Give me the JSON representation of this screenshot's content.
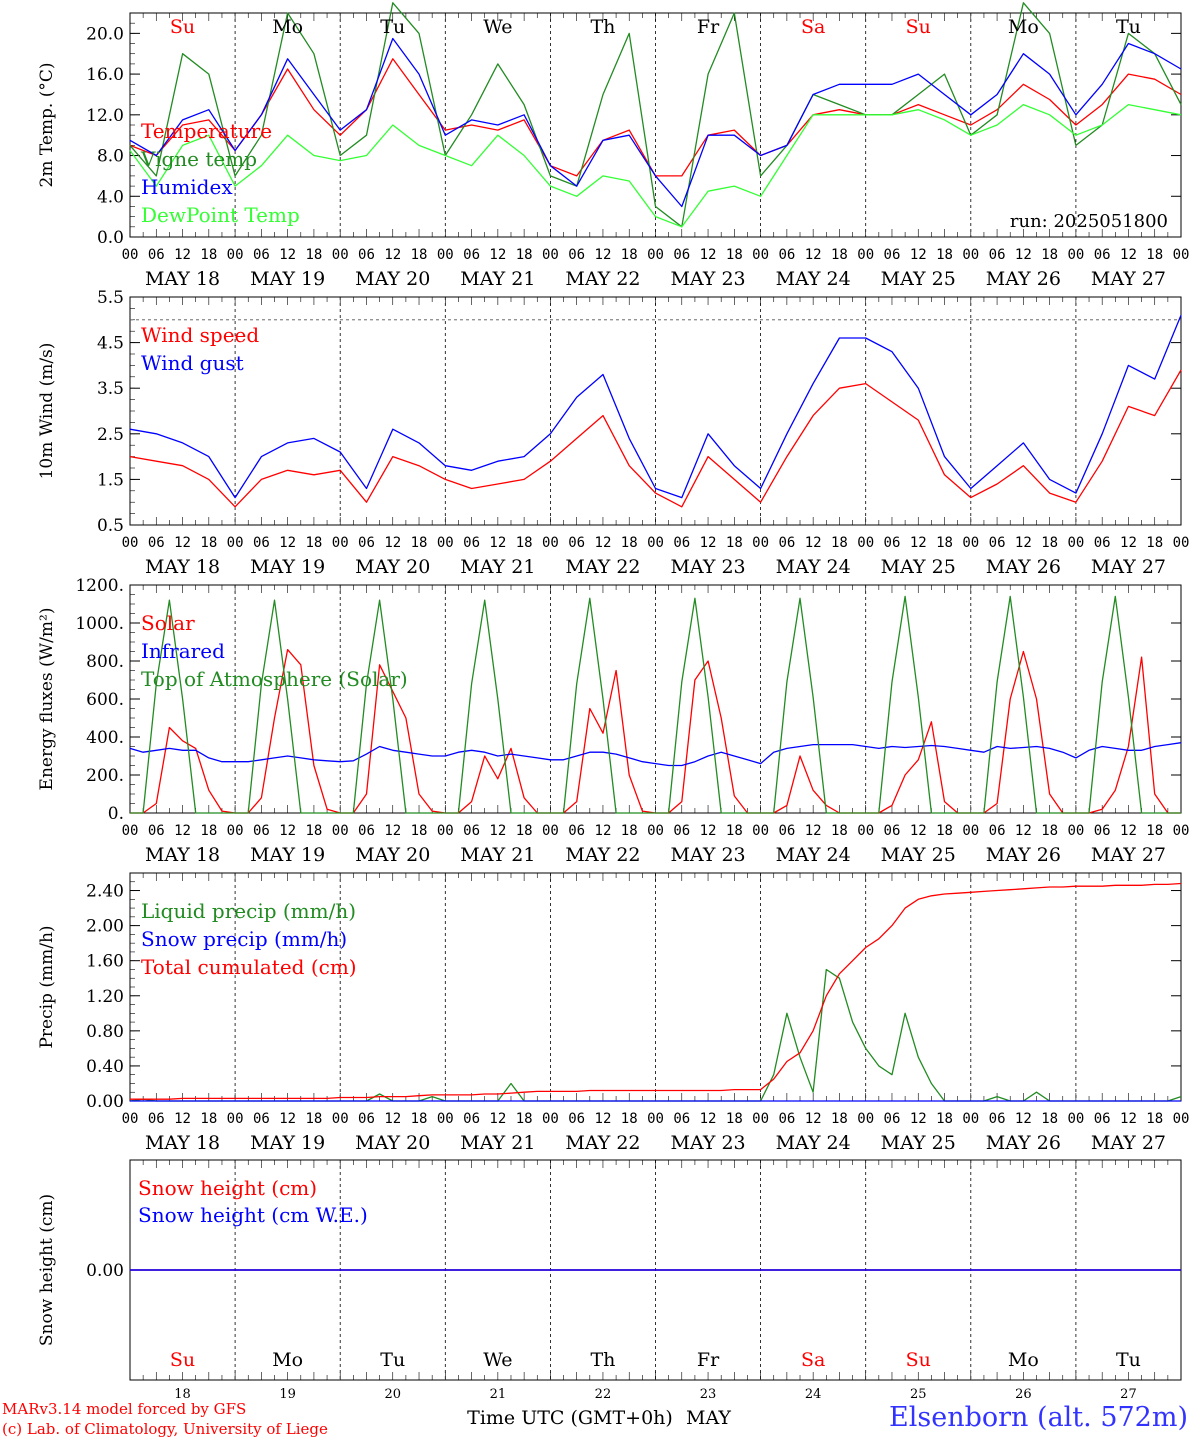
{
  "station_label": "Elsenborn (alt. 572m)",
  "run_label": "run: 2025051800",
  "credits": [
    "MARv3.14 model forced by GFS",
    "(c) Lab. of Climatology, University of Liege"
  ],
  "xaxis": {
    "hour_labels": [
      "00",
      "06",
      "12",
      "18"
    ],
    "date_labels": [
      "MAY 18",
      "MAY 19",
      "MAY 20",
      "MAY 21",
      "MAY 22",
      "MAY 23",
      "MAY 24",
      "MAY 25",
      "MAY 26",
      "MAY 27"
    ],
    "weekday_labels": [
      "Su",
      "Mo",
      "Tu",
      "We",
      "Th",
      "Fr",
      "Sa",
      "Su",
      "Mo",
      "Tu"
    ],
    "weekday_colors": [
      "#ff0000",
      "#000000",
      "#000000",
      "#000000",
      "#000000",
      "#000000",
      "#ff0000",
      "#ff0000",
      "#000000",
      "#000000"
    ],
    "day_numbers": [
      "18",
      "19",
      "20",
      "21",
      "22",
      "23",
      "24",
      "25",
      "26",
      "27"
    ],
    "bottom_title": "Time UTC (GMT+0h)",
    "bottom_month": "MAY"
  },
  "chart_data": [
    {
      "type": "line",
      "ylabel": "2m Temp. (°C)",
      "ylim": [
        0,
        22
      ],
      "yticks": [
        "0.0",
        "4.0",
        "8.0",
        "12.0",
        "16.0",
        "20.0"
      ],
      "x_days": [
        0,
        0.25,
        0.5,
        0.75,
        1,
        1.25,
        1.5,
        1.75,
        2,
        2.25,
        2.5,
        2.75,
        3,
        3.25,
        3.5,
        3.75,
        4,
        4.25,
        4.5,
        4.75,
        5,
        5.25,
        5.5,
        5.75,
        6,
        6.25,
        6.5,
        6.75,
        7,
        7.25,
        7.5,
        7.75,
        8,
        8.25,
        8.5,
        8.75,
        9,
        9.25,
        9.5,
        9.75,
        10
      ],
      "series": [
        {
          "name": "Temperature",
          "color": "#ff0000",
          "values": [
            9.0,
            8.0,
            11.0,
            11.5,
            8.5,
            12.0,
            16.5,
            12.5,
            10.0,
            12.5,
            17.5,
            14.0,
            10.5,
            11.0,
            10.5,
            11.5,
            7.0,
            6.0,
            9.5,
            10.5,
            6.0,
            6.0,
            10.0,
            10.5,
            8.0,
            9.0,
            12.0,
            12.5,
            12.0,
            12.0,
            13.0,
            12.0,
            11.0,
            12.5,
            15.0,
            13.5,
            11.0,
            13.0,
            16.0,
            15.5,
            14.0
          ]
        },
        {
          "name": "Vigne temp",
          "color": "#228b22",
          "values": [
            9.0,
            6.0,
            18.0,
            16.0,
            6.0,
            10.0,
            22.0,
            18.0,
            8.0,
            10.0,
            23.0,
            20.0,
            8.0,
            12.0,
            17.0,
            13.0,
            6.0,
            5.0,
            14.0,
            20.0,
            3.0,
            1.0,
            16.0,
            22.0,
            6.0,
            9.0,
            14.0,
            13.0,
            12.0,
            12.0,
            14.0,
            16.0,
            10.0,
            12.0,
            23.0,
            20.0,
            9.0,
            11.0,
            20.0,
            18.0,
            13.0
          ]
        },
        {
          "name": "Humidex",
          "color": "#0000ff",
          "values": [
            9.5,
            8.0,
            11.5,
            12.5,
            8.5,
            12.0,
            17.5,
            14.0,
            10.5,
            12.5,
            19.5,
            16.0,
            10.0,
            11.5,
            11.0,
            12.0,
            7.0,
            5.0,
            9.5,
            10.0,
            6.0,
            3.0,
            10.0,
            10.0,
            8.0,
            9.0,
            14.0,
            15.0,
            15.0,
            15.0,
            16.0,
            14.0,
            12.0,
            14.0,
            18.0,
            16.0,
            12.0,
            15.0,
            19.0,
            18.0,
            16.5
          ]
        },
        {
          "name": "DewPoint Temp",
          "color": "#33ff33",
          "values": [
            8.5,
            5.0,
            9.0,
            10.0,
            5.0,
            7.0,
            10.0,
            8.0,
            7.5,
            8.0,
            11.0,
            9.0,
            8.0,
            7.0,
            10.0,
            8.0,
            5.0,
            4.0,
            6.0,
            5.5,
            2.0,
            1.0,
            4.5,
            5.0,
            4.0,
            8.0,
            12.0,
            12.0,
            12.0,
            12.0,
            12.5,
            11.5,
            10.0,
            11.0,
            13.0,
            12.0,
            10.0,
            11.0,
            13.0,
            12.5,
            12.0
          ]
        }
      ]
    },
    {
      "type": "line",
      "ylabel": "10m Wind (m/s)",
      "ylim": [
        0.5,
        5.5
      ],
      "yticks": [
        "0.5",
        "1.5",
        "2.5",
        "3.5",
        "4.5",
        "5.5"
      ],
      "x_days": [
        0,
        0.25,
        0.5,
        0.75,
        1,
        1.25,
        1.5,
        1.75,
        2,
        2.25,
        2.5,
        2.75,
        3,
        3.25,
        3.5,
        3.75,
        4,
        4.25,
        4.5,
        4.75,
        5,
        5.25,
        5.5,
        5.75,
        6,
        6.25,
        6.5,
        6.75,
        7,
        7.25,
        7.5,
        7.75,
        8,
        8.25,
        8.5,
        8.75,
        9,
        9.25,
        9.5,
        9.75,
        10
      ],
      "series": [
        {
          "name": "Wind speed",
          "color": "#ff0000",
          "values": [
            2.0,
            1.9,
            1.8,
            1.5,
            0.9,
            1.5,
            1.7,
            1.6,
            1.7,
            1.0,
            2.0,
            1.8,
            1.5,
            1.3,
            1.4,
            1.5,
            1.9,
            2.4,
            2.9,
            1.8,
            1.2,
            0.9,
            2.0,
            1.5,
            1.0,
            2.0,
            2.9,
            3.5,
            3.6,
            3.2,
            2.8,
            1.6,
            1.1,
            1.4,
            1.8,
            1.2,
            1.0,
            1.9,
            3.1,
            2.9,
            3.9
          ]
        },
        {
          "name": "Wind gust",
          "color": "#0000ff",
          "values": [
            2.6,
            2.5,
            2.3,
            2.0,
            1.1,
            2.0,
            2.3,
            2.4,
            2.1,
            1.3,
            2.6,
            2.3,
            1.8,
            1.7,
            1.9,
            2.0,
            2.5,
            3.3,
            3.8,
            2.4,
            1.3,
            1.1,
            2.5,
            1.8,
            1.3,
            2.5,
            3.6,
            4.6,
            4.6,
            4.3,
            3.5,
            2.0,
            1.3,
            1.8,
            2.3,
            1.5,
            1.2,
            2.5,
            4.0,
            3.7,
            5.1
          ]
        }
      ],
      "reference_line": 5.0
    },
    {
      "type": "line",
      "ylabel": "Energy fluxes (W/m²)",
      "ylim": [
        0,
        1200
      ],
      "yticks": [
        "0.",
        "200.",
        "400.",
        "600.",
        "800.",
        "1000.",
        "1200."
      ],
      "x_days": [
        0,
        0.125,
        0.25,
        0.375,
        0.5,
        0.625,
        0.75,
        0.875,
        1,
        1.125,
        1.25,
        1.375,
        1.5,
        1.625,
        1.75,
        1.875,
        2,
        2.125,
        2.25,
        2.375,
        2.5,
        2.625,
        2.75,
        2.875,
        3,
        3.125,
        3.25,
        3.375,
        3.5,
        3.625,
        3.75,
        3.875,
        4,
        4.125,
        4.25,
        4.375,
        4.5,
        4.625,
        4.75,
        4.875,
        5,
        5.125,
        5.25,
        5.375,
        5.5,
        5.625,
        5.75,
        5.875,
        6,
        6.125,
        6.25,
        6.375,
        6.5,
        6.625,
        6.75,
        6.875,
        7,
        7.125,
        7.25,
        7.375,
        7.5,
        7.625,
        7.75,
        7.875,
        8,
        8.125,
        8.25,
        8.375,
        8.5,
        8.625,
        8.75,
        8.875,
        9,
        9.125,
        9.25,
        9.375,
        9.5,
        9.625,
        9.75,
        9.875,
        10
      ],
      "series": [
        {
          "name": "Solar",
          "color": "#ff0000",
          "values": [
            0,
            0,
            50,
            450,
            380,
            340,
            120,
            10,
            0,
            0,
            80,
            500,
            860,
            780,
            250,
            20,
            0,
            0,
            100,
            780,
            640,
            500,
            100,
            10,
            0,
            0,
            60,
            300,
            180,
            340,
            80,
            0,
            0,
            0,
            60,
            550,
            420,
            750,
            200,
            10,
            0,
            0,
            60,
            700,
            800,
            500,
            90,
            0,
            0,
            0,
            40,
            300,
            120,
            40,
            0,
            0,
            0,
            0,
            40,
            200,
            280,
            480,
            60,
            0,
            0,
            0,
            50,
            600,
            850,
            600,
            100,
            0,
            0,
            0,
            20,
            120,
            350,
            820,
            100,
            0,
            0
          ]
        },
        {
          "name": "Infrared",
          "color": "#0000ff",
          "values": [
            340,
            320,
            330,
            340,
            330,
            330,
            290,
            270,
            270,
            270,
            280,
            290,
            300,
            290,
            280,
            275,
            270,
            275,
            310,
            350,
            330,
            320,
            310,
            300,
            300,
            320,
            330,
            320,
            300,
            310,
            300,
            290,
            280,
            280,
            300,
            320,
            320,
            310,
            290,
            270,
            260,
            250,
            250,
            270,
            300,
            320,
            300,
            280,
            260,
            320,
            340,
            350,
            360,
            360,
            360,
            360,
            350,
            340,
            350,
            345,
            350,
            355,
            350,
            340,
            330,
            320,
            350,
            340,
            345,
            350,
            340,
            320,
            290,
            330,
            350,
            340,
            330,
            330,
            350,
            360,
            370
          ]
        },
        {
          "name": "Top of Atmosphere (Solar)",
          "color": "#228b22",
          "values": [
            0,
            0,
            680,
            1120,
            600,
            0,
            0,
            0,
            0,
            0,
            680,
            1120,
            600,
            0,
            0,
            0,
            0,
            0,
            680,
            1120,
            600,
            0,
            0,
            0,
            0,
            0,
            680,
            1120,
            600,
            0,
            0,
            0,
            0,
            0,
            680,
            1130,
            600,
            0,
            0,
            0,
            0,
            0,
            690,
            1130,
            610,
            0,
            0,
            0,
            0,
            0,
            690,
            1130,
            610,
            0,
            0,
            0,
            0,
            0,
            690,
            1140,
            610,
            0,
            0,
            0,
            0,
            0,
            690,
            1140,
            610,
            0,
            0,
            0,
            0,
            0,
            690,
            1140,
            610,
            0,
            0,
            0,
            0
          ]
        }
      ]
    },
    {
      "type": "line",
      "ylabel": "Precip (mm/h)",
      "ylim": [
        0,
        2.6
      ],
      "yticks": [
        "0.00",
        "0.40",
        "0.80",
        "1.20",
        "1.60",
        "2.00",
        "2.40"
      ],
      "x_days": [
        0,
        0.125,
        0.25,
        0.375,
        0.5,
        0.625,
        0.75,
        0.875,
        1,
        1.125,
        1.25,
        1.375,
        1.5,
        1.625,
        1.75,
        1.875,
        2,
        2.125,
        2.25,
        2.375,
        2.5,
        2.625,
        2.75,
        2.875,
        3,
        3.125,
        3.25,
        3.375,
        3.5,
        3.625,
        3.75,
        3.875,
        4,
        4.125,
        4.25,
        4.375,
        4.5,
        4.625,
        4.75,
        4.875,
        5,
        5.125,
        5.25,
        5.375,
        5.5,
        5.625,
        5.75,
        5.875,
        6,
        6.125,
        6.25,
        6.375,
        6.5,
        6.625,
        6.75,
        6.875,
        7,
        7.125,
        7.25,
        7.375,
        7.5,
        7.625,
        7.75,
        7.875,
        8,
        8.125,
        8.25,
        8.375,
        8.5,
        8.625,
        8.75,
        8.875,
        9,
        9.125,
        9.25,
        9.375,
        9.5,
        9.625,
        9.75,
        9.875,
        10
      ],
      "series": [
        {
          "name": "Liquid precip (mm/h)",
          "color": "#228b22",
          "values": [
            0,
            0.02,
            0,
            0,
            0,
            0,
            0,
            0,
            0,
            0,
            0,
            0,
            0,
            0,
            0,
            0,
            0,
            0,
            0,
            0.08,
            0,
            0,
            0,
            0.05,
            0,
            0,
            0,
            0,
            0,
            0.2,
            0,
            0,
            0,
            0,
            0,
            0,
            0,
            0,
            0,
            0,
            0,
            0,
            0,
            0,
            0,
            0,
            0,
            0,
            0,
            0.3,
            1.0,
            0.5,
            0.1,
            1.5,
            1.4,
            0.9,
            0.6,
            0.4,
            0.3,
            1.0,
            0.5,
            0.2,
            0,
            0,
            0,
            0,
            0.05,
            0,
            0,
            0.1,
            0,
            0,
            0,
            0,
            0,
            0,
            0,
            0,
            0,
            0,
            0.05
          ]
        },
        {
          "name": "Snow precip (mm/h)",
          "color": "#0000ff",
          "values": [
            0,
            0,
            0,
            0,
            0,
            0,
            0,
            0,
            0,
            0,
            0,
            0,
            0,
            0,
            0,
            0,
            0,
            0,
            0,
            0,
            0,
            0,
            0,
            0,
            0,
            0,
            0,
            0,
            0,
            0,
            0,
            0,
            0,
            0,
            0,
            0,
            0,
            0,
            0,
            0,
            0,
            0,
            0,
            0,
            0,
            0,
            0,
            0,
            0,
            0,
            0,
            0,
            0,
            0,
            0,
            0,
            0,
            0,
            0,
            0,
            0,
            0,
            0,
            0,
            0,
            0,
            0,
            0,
            0,
            0,
            0,
            0,
            0,
            0,
            0,
            0,
            0,
            0,
            0,
            0,
            0
          ]
        },
        {
          "name": "Total cumulated (cm)",
          "color": "#ff0000",
          "values": [
            0.02,
            0.02,
            0.02,
            0.02,
            0.03,
            0.03,
            0.03,
            0.03,
            0.03,
            0.03,
            0.03,
            0.03,
            0.03,
            0.03,
            0.03,
            0.03,
            0.04,
            0.04,
            0.04,
            0.05,
            0.05,
            0.05,
            0.06,
            0.07,
            0.07,
            0.07,
            0.07,
            0.08,
            0.08,
            0.09,
            0.1,
            0.11,
            0.11,
            0.11,
            0.11,
            0.12,
            0.12,
            0.12,
            0.12,
            0.12,
            0.12,
            0.12,
            0.12,
            0.12,
            0.12,
            0.12,
            0.13,
            0.13,
            0.13,
            0.25,
            0.45,
            0.55,
            0.8,
            1.2,
            1.45,
            1.6,
            1.75,
            1.85,
            2.0,
            2.2,
            2.3,
            2.34,
            2.36,
            2.37,
            2.38,
            2.39,
            2.4,
            2.41,
            2.42,
            2.43,
            2.44,
            2.44,
            2.45,
            2.45,
            2.45,
            2.46,
            2.46,
            2.46,
            2.47,
            2.47,
            2.48
          ]
        }
      ]
    },
    {
      "type": "line",
      "ylabel": "Snow height (cm)",
      "ylim": [
        -1,
        1
      ],
      "yticks": [
        "0.00"
      ],
      "x_days": [
        0,
        10
      ],
      "series": [
        {
          "name": "Snow height (cm)",
          "color": "#ff0000",
          "values": [
            0,
            0
          ]
        },
        {
          "name": "Snow height (cm W.E.)",
          "color": "#0000ff",
          "values": [
            0,
            0
          ]
        }
      ]
    }
  ]
}
